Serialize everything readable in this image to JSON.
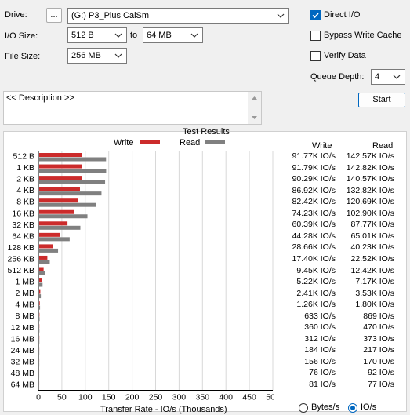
{
  "controls": {
    "drive_label": "Drive:",
    "browse_label": "...",
    "drive_value": "(G:) P3_Plus CaiSm",
    "io_size_label": "I/O Size:",
    "io_from": "512 B",
    "to_label": "to",
    "io_to": "64 MB",
    "file_size_label": "File Size:",
    "file_size": "256 MB",
    "direct_io_label": "Direct I/O",
    "direct_io_checked": true,
    "bypass_label": "Bypass Write Cache",
    "bypass_checked": false,
    "verify_label": "Verify Data",
    "verify_checked": false,
    "queue_depth_label": "Queue Depth:",
    "queue_depth": "4",
    "start_label": "Start",
    "description": "<< Description >>"
  },
  "chart_data": {
    "type": "bar",
    "title": "Test Results",
    "xlabel": "Transfer Rate - IO/s (Thousands)",
    "ylabel": "",
    "xlim": [
      0,
      500
    ],
    "x_ticks": [
      "0",
      "50",
      "100",
      "150",
      "200",
      "250",
      "300",
      "350",
      "400",
      "450",
      "500"
    ],
    "grid": true,
    "legend_placement": "top",
    "categories": [
      "512 B",
      "1 KB",
      "2 KB",
      "4 KB",
      "8 KB",
      "16 KB",
      "32 KB",
      "64 KB",
      "128 KB",
      "256 KB",
      "512 KB",
      "1 MB",
      "2 MB",
      "4 MB",
      "8 MB",
      "12 MB",
      "16 MB",
      "24 MB",
      "32 MB",
      "48 MB",
      "64 MB"
    ],
    "series": [
      {
        "name": "Write",
        "color": "#cc2b2b",
        "values": [
          91.77,
          91.79,
          90.29,
          86.92,
          82.42,
          74.23,
          60.39,
          44.28,
          28.66,
          17.4,
          9.45,
          5.22,
          2.41,
          1.26,
          0.633,
          0.36,
          0.312,
          0.184,
          0.156,
          0.076,
          0.081
        ]
      },
      {
        "name": "Read",
        "color": "#808080",
        "values": [
          142.57,
          142.82,
          140.57,
          132.82,
          120.69,
          102.9,
          87.77,
          65.01,
          40.23,
          22.52,
          12.42,
          7.17,
          3.53,
          1.8,
          0.869,
          0.47,
          0.373,
          0.217,
          0.17,
          0.092,
          0.077
        ]
      }
    ]
  },
  "results": {
    "write_header": "Write",
    "read_header": "Read",
    "write": [
      "91.77K IO/s",
      "91.79K IO/s",
      "90.29K IO/s",
      "86.92K IO/s",
      "82.42K IO/s",
      "74.23K IO/s",
      "60.39K IO/s",
      "44.28K IO/s",
      "28.66K IO/s",
      "17.40K IO/s",
      "9.45K IO/s",
      "5.22K IO/s",
      "2.41K IO/s",
      "1.26K IO/s",
      "633 IO/s",
      "360 IO/s",
      "312 IO/s",
      "184 IO/s",
      "156 IO/s",
      "76 IO/s",
      "81 IO/s"
    ],
    "read": [
      "142.57K IO/s",
      "142.82K IO/s",
      "140.57K IO/s",
      "132.82K IO/s",
      "120.69K IO/s",
      "102.90K IO/s",
      "87.77K IO/s",
      "65.01K IO/s",
      "40.23K IO/s",
      "22.52K IO/s",
      "12.42K IO/s",
      "7.17K IO/s",
      "3.53K IO/s",
      "1.80K IO/s",
      "869 IO/s",
      "470 IO/s",
      "373 IO/s",
      "217 IO/s",
      "170 IO/s",
      "92 IO/s",
      "77 IO/s"
    ]
  },
  "units": {
    "bytes_label": "Bytes/s",
    "ios_label": "IO/s",
    "selected": "IO/s"
  }
}
